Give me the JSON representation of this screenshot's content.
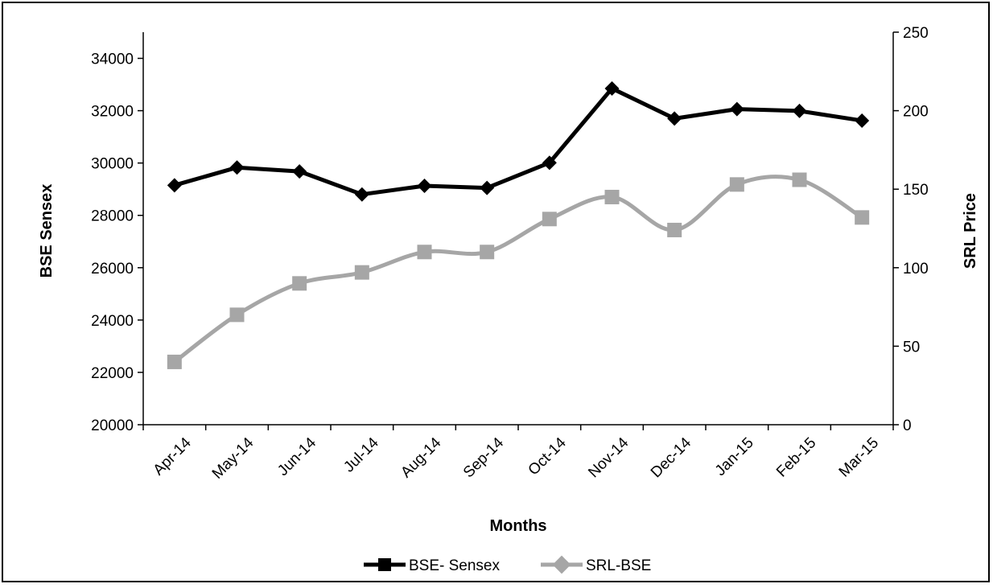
{
  "chart_data": {
    "type": "line",
    "title": "",
    "xlabel": "Months",
    "ylabel_left": "BSE Sensex",
    "ylabel_right": "SRL Price",
    "categories": [
      "Apr-14",
      "May-14",
      "Jun-14",
      "Jul-14",
      "Aug-14",
      "Sep-14",
      "Oct-14",
      "Nov-14",
      "Dec-14",
      "Jan-15",
      "Feb-15",
      "Mar-15"
    ],
    "ylim_left": [
      20000,
      35000
    ],
    "yticks_left": [
      20000,
      22000,
      24000,
      26000,
      28000,
      30000,
      32000,
      34000
    ],
    "ylim_right": [
      0,
      250
    ],
    "yticks_right": [
      0,
      50,
      100,
      150,
      200,
      250
    ],
    "grid": false,
    "legend": "bottom",
    "series": [
      {
        "name": "BSE- Sensex",
        "axis": "left",
        "color": "#000000",
        "marker": "diamond",
        "smooth": false,
        "values": [
          29150,
          29830,
          29680,
          28800,
          29130,
          29050,
          30010,
          32850,
          31700,
          32060,
          31990,
          31620
        ]
      },
      {
        "name": "SRL-BSE",
        "axis": "right",
        "color": "#a6a6a6",
        "marker": "square",
        "smooth": true,
        "values": [
          40,
          70,
          90,
          97,
          110,
          110,
          131,
          145,
          124,
          153,
          156,
          132
        ]
      }
    ]
  }
}
